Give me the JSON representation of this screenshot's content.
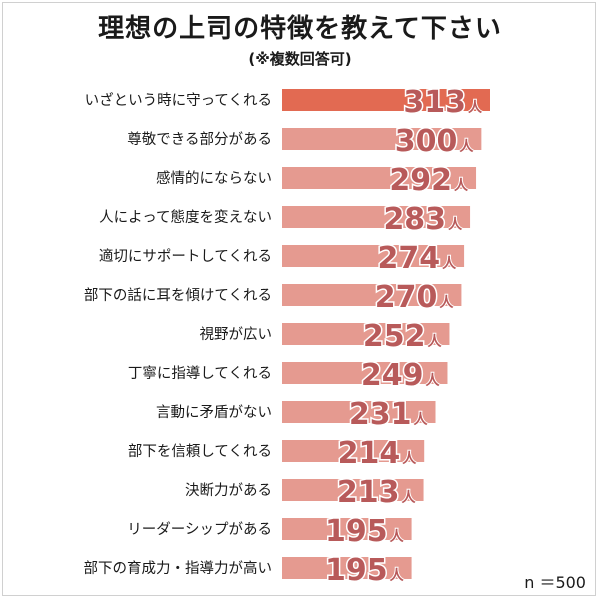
{
  "chart_data": {
    "type": "bar",
    "orientation": "horizontal",
    "title": "理想の上司の特徴を教えて下さい",
    "subtitle": "(※複数回答可)",
    "categories": [
      "いざという時に守ってくれる",
      "尊敬できる部分がある",
      "感情的にならない",
      "人によって態度を変えない",
      "適切にサポートしてくれる",
      "部下の話に耳を傾けてくれる",
      "視野が広い",
      "丁寧に指導してくれる",
      "言動に矛盾がない",
      "部下を信頼してくれる",
      "決断力がある",
      "リーダーシップがある",
      "部下の育成力・指導力が高い"
    ],
    "values": [
      313,
      300,
      292,
      283,
      274,
      270,
      252,
      249,
      231,
      214,
      213,
      195,
      195
    ],
    "value_labels": [
      "313",
      "300",
      "292",
      "283",
      "274",
      "270",
      "252",
      "249",
      "231",
      "214",
      "213",
      "195",
      "195"
    ],
    "unit": "人",
    "note": "n ＝500",
    "colors": {
      "highlight_bar": "#e26a52",
      "bar": "#e59a90",
      "value_text": "#b85a5a"
    }
  }
}
